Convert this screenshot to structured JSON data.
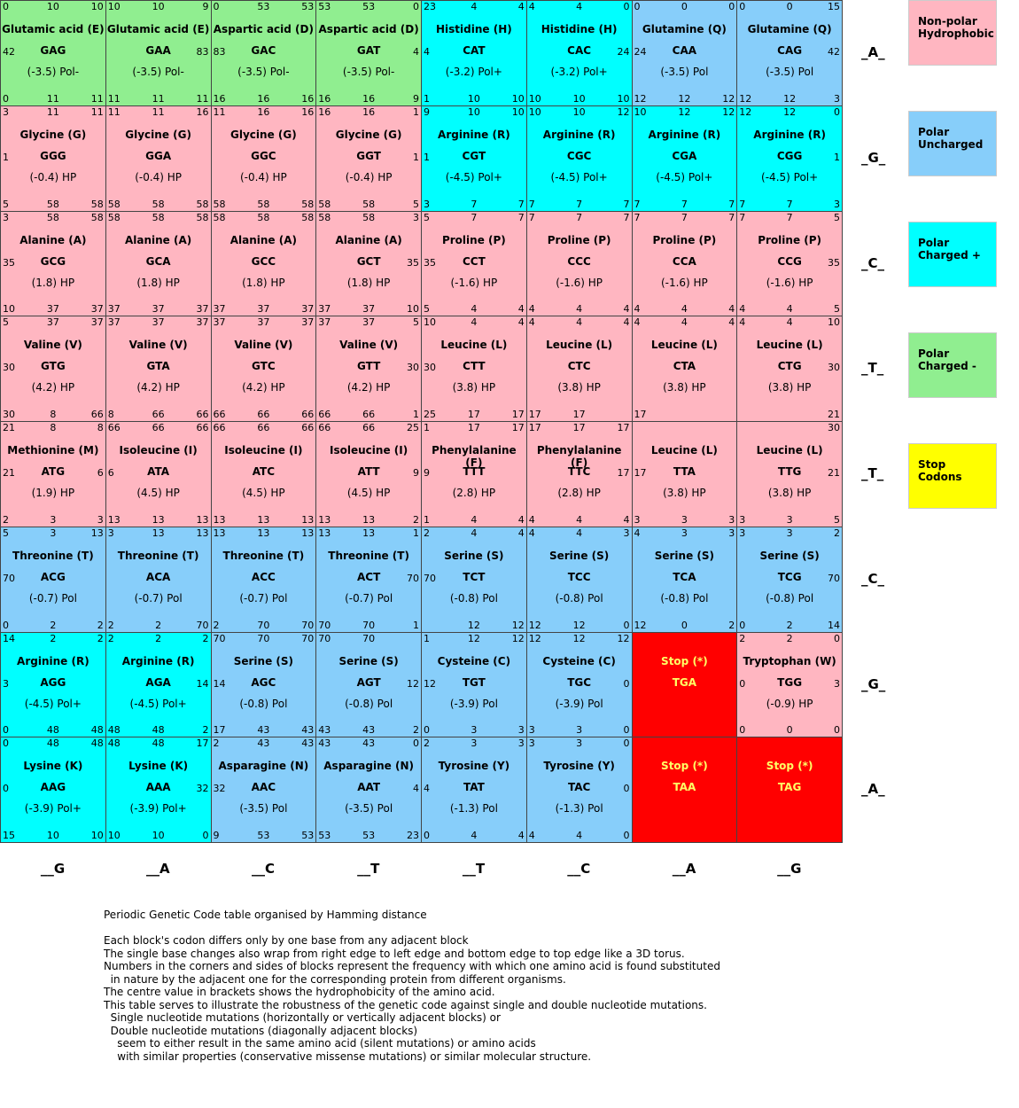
{
  "colors": {
    "nonpolar": "#ffb6c1",
    "polar": "#87cefa",
    "charged_pos": "#00ffff",
    "charged_neg": "#90ee90",
    "stop": "#ff0000",
    "stop_legend": "#ffff00"
  },
  "row_labels": [
    "_A_",
    "_G_",
    "_C_",
    "_T_",
    "_T_",
    "_C_",
    "_G_",
    "_A_"
  ],
  "col_labels": [
    "__G",
    "__A",
    "__C",
    "__T",
    "__T",
    "__C",
    "__A",
    "__G"
  ],
  "legend": [
    {
      "label": "Non-polar Hydrophobic",
      "line1": "Non-polar",
      "line2": "Hydrophobic",
      "color_key": "nonpolar"
    },
    {
      "label": "Polar Uncharged",
      "line1": "Polar",
      "line2": "Uncharged",
      "color_key": "polar"
    },
    {
      "label": "Polar Charged +",
      "line1": "Polar",
      "line2": "Charged +",
      "color_key": "charged_pos"
    },
    {
      "label": "Polar Charged -",
      "line1": "Polar",
      "line2": "Charged -",
      "color_key": "charged_neg"
    },
    {
      "label": "Stop Codons",
      "line1": "Stop",
      "line2": "Codons",
      "color_key": "stop_legend"
    }
  ],
  "cells": [
    {
      "name": "Glutamic acid (E)",
      "codon": "GAG",
      "prop": "(-3.5) Pol-",
      "type": "charged_neg",
      "tl": "0",
      "t": "10",
      "tr": "10",
      "l": "42",
      "r": "",
      "bl": "0",
      "b": "11",
      "br": "11"
    },
    {
      "name": "Glutamic acid (E)",
      "codon": "GAA",
      "prop": "(-3.5) Pol-",
      "type": "charged_neg",
      "tl": "10",
      "t": "10",
      "tr": "9",
      "l": "",
      "r": "83",
      "bl": "11",
      "b": "11",
      "br": "11"
    },
    {
      "name": "Aspartic acid (D)",
      "codon": "GAC",
      "prop": "(-3.5) Pol-",
      "type": "charged_neg",
      "tl": "0",
      "t": "53",
      "tr": "53",
      "l": "83",
      "r": "",
      "bl": "16",
      "b": "16",
      "br": "16"
    },
    {
      "name": "Aspartic acid (D)",
      "codon": "GAT",
      "prop": "(-3.5) Pol-",
      "type": "charged_neg",
      "tl": "53",
      "t": "53",
      "tr": "0",
      "l": "",
      "r": "4",
      "bl": "16",
      "b": "16",
      "br": "9"
    },
    {
      "name": "Histidine (H)",
      "codon": "CAT",
      "prop": "(-3.2) Pol+",
      "type": "charged_pos",
      "tl": "23",
      "t": "4",
      "tr": "4",
      "l": "4",
      "r": "",
      "bl": "1",
      "b": "10",
      "br": "10"
    },
    {
      "name": "Histidine (H)",
      "codon": "CAC",
      "prop": "(-3.2) Pol+",
      "type": "charged_pos",
      "tl": "4",
      "t": "4",
      "tr": "0",
      "l": "",
      "r": "24",
      "bl": "10",
      "b": "10",
      "br": "10"
    },
    {
      "name": "Glutamine (Q)",
      "codon": "CAA",
      "prop": "(-3.5) Pol",
      "type": "polar",
      "tl": "0",
      "t": "0",
      "tr": "0",
      "l": "24",
      "r": "",
      "bl": "12",
      "b": "12",
      "br": "12"
    },
    {
      "name": "Glutamine (Q)",
      "codon": "CAG",
      "prop": "(-3.5) Pol",
      "type": "polar",
      "tl": "0",
      "t": "0",
      "tr": "15",
      "l": "",
      "r": "42",
      "bl": "12",
      "b": "12",
      "br": "3"
    },
    {
      "name": "Glycine (G)",
      "codon": "GGG",
      "prop": "(-0.4) HP",
      "type": "nonpolar",
      "tl": "3",
      "t": "11",
      "tr": "11",
      "l": "1",
      "r": "",
      "bl": "5",
      "b": "58",
      "br": "58"
    },
    {
      "name": "Glycine (G)",
      "codon": "GGA",
      "prop": "(-0.4) HP",
      "type": "nonpolar",
      "tl": "11",
      "t": "11",
      "tr": "16",
      "l": "",
      "r": "",
      "bl": "58",
      "b": "58",
      "br": "58"
    },
    {
      "name": "Glycine (G)",
      "codon": "GGC",
      "prop": "(-0.4) HP",
      "type": "nonpolar",
      "tl": "11",
      "t": "16",
      "tr": "16",
      "l": "",
      "r": "",
      "bl": "58",
      "b": "58",
      "br": "58"
    },
    {
      "name": "Glycine (G)",
      "codon": "GGT",
      "prop": "(-0.4) HP",
      "type": "nonpolar",
      "tl": "16",
      "t": "16",
      "tr": "1",
      "l": "",
      "r": "1",
      "bl": "58",
      "b": "58",
      "br": "5"
    },
    {
      "name": "Arginine (R)",
      "codon": "CGT",
      "prop": "(-4.5) Pol+",
      "type": "charged_pos",
      "tl": "9",
      "t": "10",
      "tr": "10",
      "l": "1",
      "r": "",
      "bl": "3",
      "b": "7",
      "br": "7"
    },
    {
      "name": "Arginine (R)",
      "codon": "CGC",
      "prop": "(-4.5) Pol+",
      "type": "charged_pos",
      "tl": "10",
      "t": "10",
      "tr": "12",
      "l": "",
      "r": "",
      "bl": "7",
      "b": "7",
      "br": "7"
    },
    {
      "name": "Arginine (R)",
      "codon": "CGA",
      "prop": "(-4.5) Pol+",
      "type": "charged_pos",
      "tl": "10",
      "t": "12",
      "tr": "12",
      "l": "",
      "r": "",
      "bl": "7",
      "b": "7",
      "br": "7"
    },
    {
      "name": "Arginine (R)",
      "codon": "CGG",
      "prop": "(-4.5) Pol+",
      "type": "charged_pos",
      "tl": "12",
      "t": "12",
      "tr": "0",
      "l": "",
      "r": "1",
      "bl": "7",
      "b": "7",
      "br": "3"
    },
    {
      "name": "Alanine (A)",
      "codon": "GCG",
      "prop": "(1.8) HP",
      "type": "nonpolar",
      "tl": "3",
      "t": "58",
      "tr": "58",
      "l": "35",
      "r": "",
      "bl": "10",
      "b": "37",
      "br": "37"
    },
    {
      "name": "Alanine (A)",
      "codon": "GCA",
      "prop": "(1.8) HP",
      "type": "nonpolar",
      "tl": "58",
      "t": "58",
      "tr": "58",
      "l": "",
      "r": "",
      "bl": "37",
      "b": "37",
      "br": "37"
    },
    {
      "name": "Alanine (A)",
      "codon": "GCC",
      "prop": "(1.8) HP",
      "type": "nonpolar",
      "tl": "58",
      "t": "58",
      "tr": "58",
      "l": "",
      "r": "",
      "bl": "37",
      "b": "37",
      "br": "37"
    },
    {
      "name": "Alanine (A)",
      "codon": "GCT",
      "prop": "(1.8) HP",
      "type": "nonpolar",
      "tl": "58",
      "t": "58",
      "tr": "3",
      "l": "",
      "r": "35",
      "bl": "37",
      "b": "37",
      "br": "10"
    },
    {
      "name": "Proline (P)",
      "codon": "CCT",
      "prop": "(-1.6) HP",
      "type": "nonpolar",
      "tl": "5",
      "t": "7",
      "tr": "7",
      "l": "35",
      "r": "",
      "bl": "5",
      "b": "4",
      "br": "4"
    },
    {
      "name": "Proline (P)",
      "codon": "CCC",
      "prop": "(-1.6) HP",
      "type": "nonpolar",
      "tl": "7",
      "t": "7",
      "tr": "7",
      "l": "",
      "r": "",
      "bl": "4",
      "b": "4",
      "br": "4"
    },
    {
      "name": "Proline (P)",
      "codon": "CCA",
      "prop": "(-1.6) HP",
      "type": "nonpolar",
      "tl": "7",
      "t": "7",
      "tr": "7",
      "l": "",
      "r": "",
      "bl": "4",
      "b": "4",
      "br": "4"
    },
    {
      "name": "Proline (P)",
      "codon": "CCG",
      "prop": "(-1.6) HP",
      "type": "nonpolar",
      "tl": "7",
      "t": "7",
      "tr": "5",
      "l": "",
      "r": "35",
      "bl": "4",
      "b": "4",
      "br": "5"
    },
    {
      "name": "Valine (V)",
      "codon": "GTG",
      "prop": "(4.2) HP",
      "type": "nonpolar",
      "tl": "5",
      "t": "37",
      "tr": "37",
      "l": "30",
      "r": "",
      "bl": "30",
      "b": "8",
      "br": "66"
    },
    {
      "name": "Valine (V)",
      "codon": "GTA",
      "prop": "(4.2) HP",
      "type": "nonpolar",
      "tl": "37",
      "t": "37",
      "tr": "37",
      "l": "",
      "r": "",
      "bl": "8",
      "b": "66",
      "br": "66"
    },
    {
      "name": "Valine (V)",
      "codon": "GTC",
      "prop": "(4.2) HP",
      "type": "nonpolar",
      "tl": "37",
      "t": "37",
      "tr": "37",
      "l": "",
      "r": "",
      "bl": "66",
      "b": "66",
      "br": "66"
    },
    {
      "name": "Valine (V)",
      "codon": "GTT",
      "prop": "(4.2) HP",
      "type": "nonpolar",
      "tl": "37",
      "t": "37",
      "tr": "5",
      "l": "",
      "r": "30",
      "bl": "66",
      "b": "66",
      "br": "1"
    },
    {
      "name": "Leucine (L)",
      "codon": "CTT",
      "prop": "(3.8) HP",
      "type": "nonpolar",
      "tl": "10",
      "t": "4",
      "tr": "4",
      "l": "30",
      "r": "",
      "bl": "25",
      "b": "17",
      "br": "17"
    },
    {
      "name": "Leucine (L)",
      "codon": "CTC",
      "prop": "(3.8) HP",
      "type": "nonpolar",
      "tl": "4",
      "t": "4",
      "tr": "4",
      "l": "",
      "r": "",
      "bl": "17",
      "b": "17",
      "br": ""
    },
    {
      "name": "Leucine (L)",
      "codon": "CTA",
      "prop": "(3.8) HP",
      "type": "nonpolar",
      "tl": "4",
      "t": "4",
      "tr": "4",
      "l": "",
      "r": "",
      "bl": "17",
      "b": "",
      "br": ""
    },
    {
      "name": "Leucine (L)",
      "codon": "CTG",
      "prop": "(3.8) HP",
      "type": "nonpolar",
      "tl": "4",
      "t": "4",
      "tr": "10",
      "l": "",
      "r": "30",
      "bl": "",
      "b": "",
      "br": "21"
    },
    {
      "name": "Methionine (M)",
      "codon": "ATG",
      "prop": "(1.9) HP",
      "type": "nonpolar",
      "tl": "21",
      "t": "8",
      "tr": "8",
      "l": "21",
      "r": "6",
      "bl": "2",
      "b": "3",
      "br": "3"
    },
    {
      "name": "Isoleucine (I)",
      "codon": "ATA",
      "prop": "(4.5) HP",
      "type": "nonpolar",
      "tl": "66",
      "t": "66",
      "tr": "66",
      "l": "6",
      "r": "",
      "bl": "13",
      "b": "13",
      "br": "13"
    },
    {
      "name": "Isoleucine (I)",
      "codon": "ATC",
      "prop": "(4.5) HP",
      "type": "nonpolar",
      "tl": "66",
      "t": "66",
      "tr": "66",
      "l": "",
      "r": "",
      "bl": "13",
      "b": "13",
      "br": "13"
    },
    {
      "name": "Isoleucine (I)",
      "codon": "ATT",
      "prop": "(4.5) HP",
      "type": "nonpolar",
      "tl": "66",
      "t": "66",
      "tr": "25",
      "l": "",
      "r": "9",
      "bl": "13",
      "b": "13",
      "br": "2"
    },
    {
      "name": "Phenylalanine (F)",
      "codon": "TTT",
      "prop": "(2.8) HP",
      "type": "nonpolar",
      "tl": "1",
      "t": "17",
      "tr": "17",
      "l": "9",
      "r": "",
      "bl": "1",
      "b": "4",
      "br": "4"
    },
    {
      "name": "Phenylalanine (F)",
      "codon": "TTC",
      "prop": "(2.8) HP",
      "type": "nonpolar",
      "tl": "17",
      "t": "17",
      "tr": "17",
      "l": "",
      "r": "17",
      "bl": "4",
      "b": "4",
      "br": "4"
    },
    {
      "name": "Leucine (L)",
      "codon": "TTA",
      "prop": "(3.8) HP",
      "type": "nonpolar",
      "tl": "",
      "t": "",
      "tr": "",
      "l": "17",
      "r": "",
      "bl": "3",
      "b": "3",
      "br": "3"
    },
    {
      "name": "Leucine (L)",
      "codon": "TTG",
      "prop": "(3.8) HP",
      "type": "nonpolar",
      "tl": "",
      "t": "",
      "tr": "30",
      "l": "",
      "r": "21",
      "bl": "3",
      "b": "3",
      "br": "5"
    },
    {
      "name": "Threonine (T)",
      "codon": "ACG",
      "prop": "(-0.7) Pol",
      "type": "polar",
      "tl": "5",
      "t": "3",
      "tr": "13",
      "l": "70",
      "r": "",
      "bl": "0",
      "b": "2",
      "br": "2"
    },
    {
      "name": "Threonine (T)",
      "codon": "ACA",
      "prop": "(-0.7) Pol",
      "type": "polar",
      "tl": "3",
      "t": "13",
      "tr": "13",
      "l": "",
      "r": "",
      "bl": "2",
      "b": "2",
      "br": "70"
    },
    {
      "name": "Threonine (T)",
      "codon": "ACC",
      "prop": "(-0.7) Pol",
      "type": "polar",
      "tl": "13",
      "t": "13",
      "tr": "13",
      "l": "",
      "r": "",
      "bl": "2",
      "b": "70",
      "br": "70"
    },
    {
      "name": "Threonine (T)",
      "codon": "ACT",
      "prop": "(-0.7) Pol",
      "type": "polar",
      "tl": "13",
      "t": "13",
      "tr": "1",
      "l": "",
      "r": "70",
      "bl": "70",
      "b": "70",
      "br": "1"
    },
    {
      "name": "Serine (S)",
      "codon": "TCT",
      "prop": "(-0.8) Pol",
      "type": "polar",
      "tl": "2",
      "t": "4",
      "tr": "4",
      "l": "70",
      "r": "",
      "bl": "",
      "b": "12",
      "br": "12"
    },
    {
      "name": "Serine (S)",
      "codon": "TCC",
      "prop": "(-0.8) Pol",
      "type": "polar",
      "tl": "4",
      "t": "4",
      "tr": "3",
      "l": "",
      "r": "",
      "bl": "12",
      "b": "12",
      "br": "0"
    },
    {
      "name": "Serine (S)",
      "codon": "TCA",
      "prop": "(-0.8) Pol",
      "type": "polar",
      "tl": "4",
      "t": "3",
      "tr": "3",
      "l": "",
      "r": "",
      "bl": "12",
      "b": "0",
      "br": "2"
    },
    {
      "name": "Serine (S)",
      "codon": "TCG",
      "prop": "(-0.8) Pol",
      "type": "polar",
      "tl": "3",
      "t": "3",
      "tr": "2",
      "l": "",
      "r": "70",
      "bl": "0",
      "b": "2",
      "br": "14"
    },
    {
      "name": "Arginine (R)",
      "codon": "AGG",
      "prop": "(-4.5) Pol+",
      "type": "charged_pos",
      "tl": "14",
      "t": "2",
      "tr": "2",
      "l": "3",
      "r": "",
      "bl": "0",
      "b": "48",
      "br": "48"
    },
    {
      "name": "Arginine (R)",
      "codon": "AGA",
      "prop": "(-4.5) Pol+",
      "type": "charged_pos",
      "tl": "2",
      "t": "2",
      "tr": "2",
      "l": "",
      "r": "14",
      "bl": "48",
      "b": "48",
      "br": "2"
    },
    {
      "name": "Serine (S)",
      "codon": "AGC",
      "prop": "(-0.8) Pol",
      "type": "polar",
      "tl": "70",
      "t": "70",
      "tr": "70",
      "l": "14",
      "r": "",
      "bl": "17",
      "b": "43",
      "br": "43"
    },
    {
      "name": "Serine (S)",
      "codon": "AGT",
      "prop": "(-0.8) Pol",
      "type": "polar",
      "tl": "70",
      "t": "70",
      "tr": "",
      "l": "",
      "r": "12",
      "bl": "43",
      "b": "43",
      "br": "2"
    },
    {
      "name": "Cysteine (C)",
      "codon": "TGT",
      "prop": "(-3.9) Pol",
      "type": "polar",
      "tl": "1",
      "t": "12",
      "tr": "12",
      "l": "12",
      "r": "",
      "bl": "0",
      "b": "3",
      "br": "3"
    },
    {
      "name": "Cysteine (C)",
      "codon": "TGC",
      "prop": "(-3.9) Pol",
      "type": "polar",
      "tl": "12",
      "t": "12",
      "tr": "12",
      "l": "",
      "r": "0",
      "bl": "3",
      "b": "3",
      "br": "0"
    },
    {
      "name": "Stop (*)",
      "codon": "TGA",
      "prop": "",
      "type": "stop",
      "tl": "",
      "t": "",
      "tr": "",
      "l": "",
      "r": "",
      "bl": "",
      "b": "",
      "br": ""
    },
    {
      "name": "Tryptophan (W)",
      "codon": "TGG",
      "prop": "(-0.9) HP",
      "type": "nonpolar",
      "tl": "2",
      "t": "2",
      "tr": "0",
      "l": "0",
      "r": "3",
      "bl": "0",
      "b": "0",
      "br": "0"
    },
    {
      "name": "Lysine (K)",
      "codon": "AAG",
      "prop": "(-3.9) Pol+",
      "type": "charged_pos",
      "tl": "0",
      "t": "48",
      "tr": "48",
      "l": "0",
      "r": "",
      "bl": "15",
      "b": "10",
      "br": "10"
    },
    {
      "name": "Lysine (K)",
      "codon": "AAA",
      "prop": "(-3.9) Pol+",
      "type": "charged_pos",
      "tl": "48",
      "t": "48",
      "tr": "17",
      "l": "",
      "r": "32",
      "bl": "10",
      "b": "10",
      "br": "0"
    },
    {
      "name": "Asparagine (N)",
      "codon": "AAC",
      "prop": "(-3.5) Pol",
      "type": "polar",
      "tl": "2",
      "t": "43",
      "tr": "43",
      "l": "32",
      "r": "",
      "bl": "9",
      "b": "53",
      "br": "53"
    },
    {
      "name": "Asparagine (N)",
      "codon": "AAT",
      "prop": "(-3.5) Pol",
      "type": "polar",
      "tl": "43",
      "t": "43",
      "tr": "0",
      "l": "",
      "r": "4",
      "bl": "53",
      "b": "53",
      "br": "23"
    },
    {
      "name": "Tyrosine (Y)",
      "codon": "TAT",
      "prop": "(-1.3) Pol",
      "type": "polar",
      "tl": "2",
      "t": "3",
      "tr": "3",
      "l": "4",
      "r": "",
      "bl": "0",
      "b": "4",
      "br": "4"
    },
    {
      "name": "Tyrosine (Y)",
      "codon": "TAC",
      "prop": "(-1.3) Pol",
      "type": "polar",
      "tl": "3",
      "t": "3",
      "tr": "0",
      "l": "",
      "r": "0",
      "bl": "4",
      "b": "4",
      "br": "0"
    },
    {
      "name": "Stop (*)",
      "codon": "TAA",
      "prop": "",
      "type": "stop",
      "tl": "",
      "t": "",
      "tr": "",
      "l": "",
      "r": "",
      "bl": "",
      "b": "",
      "br": ""
    },
    {
      "name": "Stop (*)",
      "codon": "TAG",
      "prop": "",
      "type": "stop",
      "tl": "",
      "t": "",
      "tr": "",
      "l": "",
      "r": "",
      "bl": "",
      "b": "",
      "br": ""
    }
  ],
  "notes": [
    "Periodic Genetic Code table organised by Hamming distance",
    "",
    "Each block's codon differs only by one base from any adjacent block",
    "The single base changes also wrap from right edge to left edge and bottom edge to top edge like a 3D torus.",
    "Numbers in the corners and sides of blocks represent the frequency with which one amino acid is found substituted",
    "  in nature by the adjacent one for the corresponding protein from different organisms.",
    "The centre value in brackets shows the hydrophobicity of the amino acid.",
    "This table serves to illustrate the robustness of the genetic code against single and double nucleotide mutations.",
    "  Single nucleotide mutations (horizontally or vertically adjacent blocks) or",
    "  Double nucleotide mutations (diagonally adjacent blocks)",
    "    seem to either result in the same amino acid (silent mutations) or amino acids",
    "    with similar properties (conservative missense mutations) or similar molecular structure."
  ]
}
